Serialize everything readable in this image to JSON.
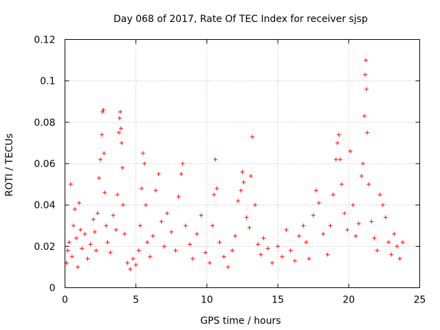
{
  "chart_data": {
    "type": "scatter",
    "title": "Day 068 of 2017, Rate Of TEC Index for receiver sjsp",
    "xlabel": "GPS time / hours",
    "ylabel": "ROTI / TECUs",
    "xlim": [
      0,
      25
    ],
    "ylim": [
      0,
      0.12
    ],
    "x_ticks": [
      0,
      5,
      10,
      15,
      20,
      25
    ],
    "x_tick_labels": [
      "0",
      "5",
      "10",
      "15",
      "20",
      "25"
    ],
    "y_ticks": [
      0,
      0.02,
      0.04,
      0.06,
      0.08,
      0.1,
      0.12
    ],
    "y_tick_labels": [
      "0",
      "0.02",
      "0.04",
      "0.06",
      "0.08",
      "0.1",
      "0.12"
    ],
    "grid": true,
    "marker": "plus",
    "colors": {
      "series": "#ff0000",
      "grid": "#a0a0a0",
      "axes": "#000000"
    },
    "series": [
      {
        "name": "ROTI",
        "points": [
          [
            0.1,
            0.012
          ],
          [
            0.2,
            0.018
          ],
          [
            0.3,
            0.022
          ],
          [
            0.4,
            0.05
          ],
          [
            0.5,
            0.015
          ],
          [
            0.6,
            0.03
          ],
          [
            0.7,
            0.038
          ],
          [
            0.8,
            0.024
          ],
          [
            0.9,
            0.01
          ],
          [
            1.0,
            0.041
          ],
          [
            1.1,
            0.028
          ],
          [
            1.2,
            0.019
          ],
          [
            1.4,
            0.026
          ],
          [
            1.6,
            0.014
          ],
          [
            1.8,
            0.021
          ],
          [
            2.0,
            0.033
          ],
          [
            2.1,
            0.027
          ],
          [
            2.2,
            0.018
          ],
          [
            2.3,
            0.036
          ],
          [
            2.4,
            0.053
          ],
          [
            2.5,
            0.062
          ],
          [
            2.6,
            0.074
          ],
          [
            2.65,
            0.085
          ],
          [
            2.7,
            0.086
          ],
          [
            2.75,
            0.065
          ],
          [
            2.8,
            0.046
          ],
          [
            2.9,
            0.03
          ],
          [
            3.0,
            0.022
          ],
          [
            3.2,
            0.017
          ],
          [
            3.4,
            0.035
          ],
          [
            3.6,
            0.028
          ],
          [
            3.7,
            0.045
          ],
          [
            3.8,
            0.075
          ],
          [
            3.85,
            0.082
          ],
          [
            3.9,
            0.085
          ],
          [
            3.95,
            0.077
          ],
          [
            4.0,
            0.07
          ],
          [
            4.05,
            0.058
          ],
          [
            4.1,
            0.04
          ],
          [
            4.2,
            0.026
          ],
          [
            4.4,
            0.012
          ],
          [
            4.6,
            0.009
          ],
          [
            4.8,
            0.014
          ],
          [
            5.0,
            0.011
          ],
          [
            5.2,
            0.018
          ],
          [
            5.3,
            0.03
          ],
          [
            5.4,
            0.048
          ],
          [
            5.5,
            0.065
          ],
          [
            5.6,
            0.06
          ],
          [
            5.7,
            0.04
          ],
          [
            5.8,
            0.022
          ],
          [
            6.0,
            0.015
          ],
          [
            6.2,
            0.025
          ],
          [
            6.4,
            0.047
          ],
          [
            6.6,
            0.055
          ],
          [
            6.8,
            0.032
          ],
          [
            7.0,
            0.02
          ],
          [
            7.2,
            0.036
          ],
          [
            7.5,
            0.027
          ],
          [
            7.8,
            0.018
          ],
          [
            8.0,
            0.044
          ],
          [
            8.2,
            0.055
          ],
          [
            8.3,
            0.06
          ],
          [
            8.5,
            0.03
          ],
          [
            8.8,
            0.021
          ],
          [
            9.0,
            0.014
          ],
          [
            9.3,
            0.026
          ],
          [
            9.6,
            0.035
          ],
          [
            9.9,
            0.017
          ],
          [
            10.2,
            0.012
          ],
          [
            10.4,
            0.03
          ],
          [
            10.5,
            0.045
          ],
          [
            10.6,
            0.062
          ],
          [
            10.7,
            0.048
          ],
          [
            10.9,
            0.022
          ],
          [
            11.2,
            0.015
          ],
          [
            11.5,
            0.01
          ],
          [
            11.8,
            0.018
          ],
          [
            12.0,
            0.025
          ],
          [
            12.2,
            0.042
          ],
          [
            12.4,
            0.047
          ],
          [
            12.5,
            0.056
          ],
          [
            12.6,
            0.051
          ],
          [
            12.8,
            0.034
          ],
          [
            13.0,
            0.029
          ],
          [
            13.1,
            0.054
          ],
          [
            13.2,
            0.073
          ],
          [
            13.4,
            0.04
          ],
          [
            13.6,
            0.021
          ],
          [
            13.8,
            0.016
          ],
          [
            14.0,
            0.024
          ],
          [
            14.3,
            0.019
          ],
          [
            14.6,
            0.012
          ],
          [
            15.0,
            0.02
          ],
          [
            15.3,
            0.015
          ],
          [
            15.6,
            0.028
          ],
          [
            15.9,
            0.018
          ],
          [
            16.2,
            0.013
          ],
          [
            16.5,
            0.025
          ],
          [
            16.8,
            0.03
          ],
          [
            17.0,
            0.022
          ],
          [
            17.2,
            0.014
          ],
          [
            17.5,
            0.035
          ],
          [
            17.7,
            0.047
          ],
          [
            17.9,
            0.041
          ],
          [
            18.2,
            0.026
          ],
          [
            18.5,
            0.016
          ],
          [
            18.7,
            0.03
          ],
          [
            18.9,
            0.045
          ],
          [
            19.1,
            0.062
          ],
          [
            19.2,
            0.07
          ],
          [
            19.3,
            0.074
          ],
          [
            19.4,
            0.062
          ],
          [
            19.5,
            0.05
          ],
          [
            19.7,
            0.036
          ],
          [
            19.9,
            0.028
          ],
          [
            20.1,
            0.066
          ],
          [
            20.3,
            0.04
          ],
          [
            20.5,
            0.025
          ],
          [
            20.7,
            0.031
          ],
          [
            20.9,
            0.054
          ],
          [
            21.0,
            0.06
          ],
          [
            21.1,
            0.083
          ],
          [
            21.15,
            0.103
          ],
          [
            21.2,
            0.11
          ],
          [
            21.25,
            0.096
          ],
          [
            21.3,
            0.075
          ],
          [
            21.4,
            0.05
          ],
          [
            21.6,
            0.032
          ],
          [
            21.8,
            0.024
          ],
          [
            22.0,
            0.018
          ],
          [
            22.2,
            0.045
          ],
          [
            22.4,
            0.04
          ],
          [
            22.6,
            0.034
          ],
          [
            22.8,
            0.022
          ],
          [
            23.0,
            0.016
          ],
          [
            23.2,
            0.026
          ],
          [
            23.4,
            0.02
          ],
          [
            23.6,
            0.014
          ],
          [
            23.8,
            0.022
          ]
        ]
      }
    ]
  }
}
